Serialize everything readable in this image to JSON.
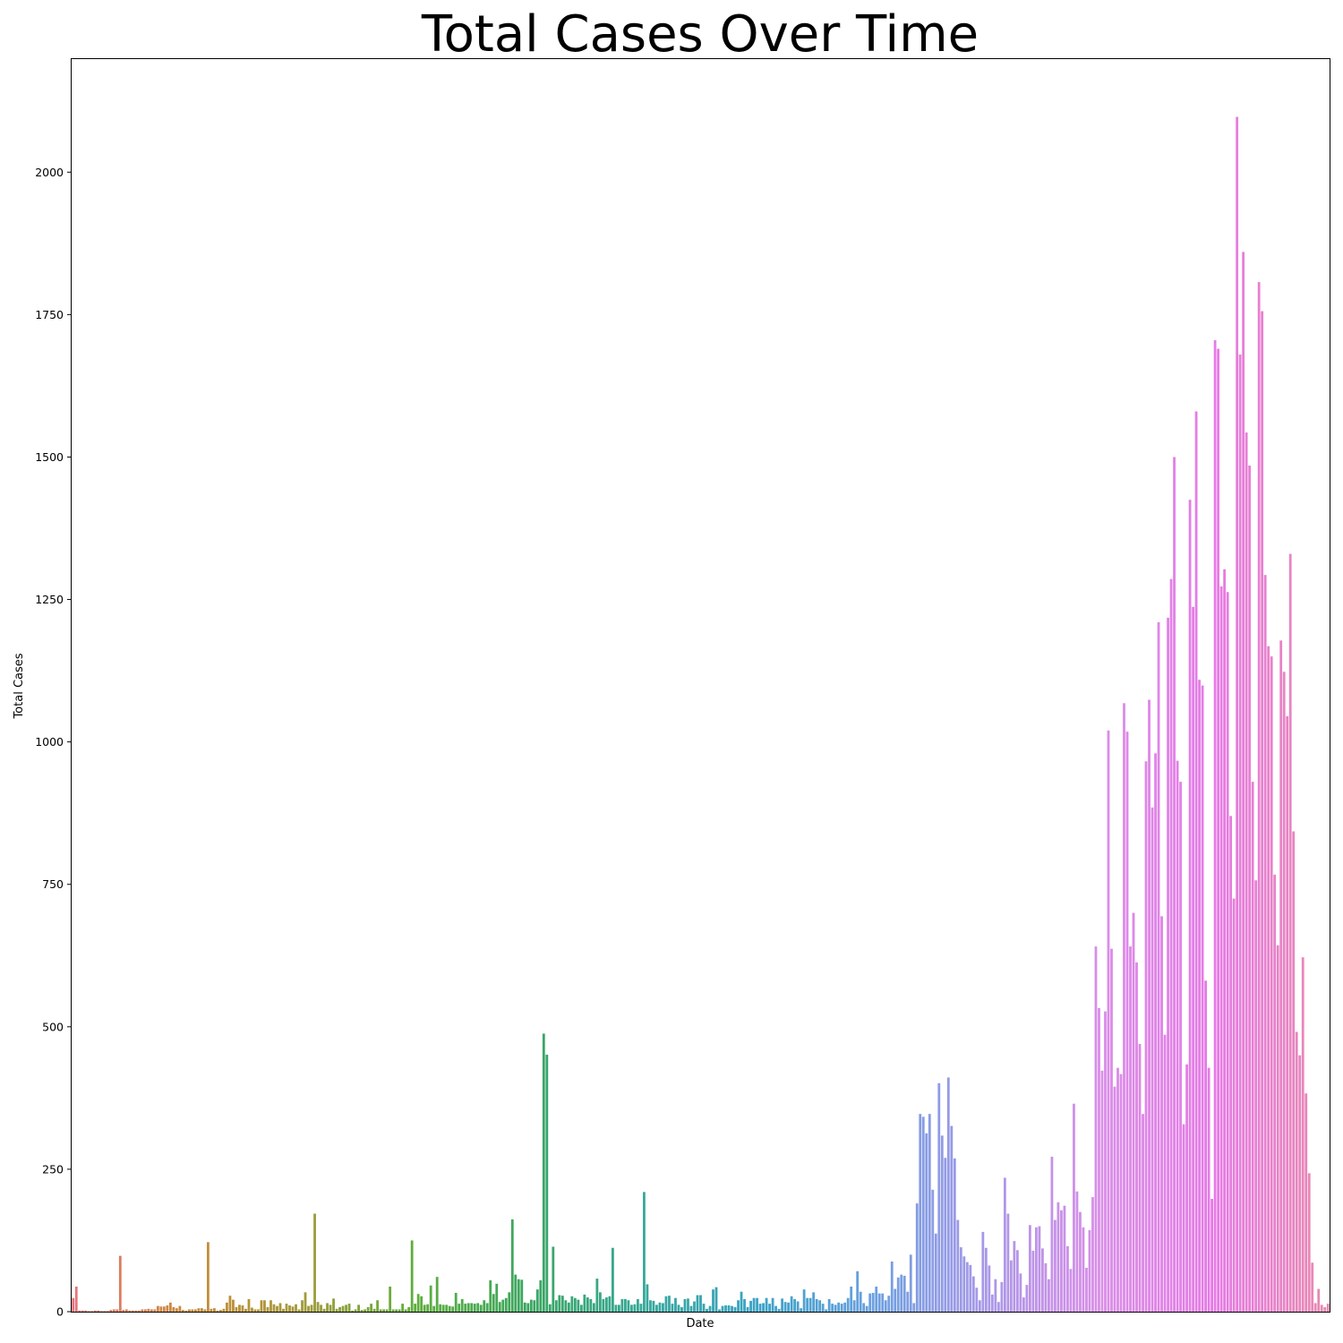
{
  "chart_data": {
    "type": "bar",
    "title": "Total Cases Over Time",
    "xlabel": "Date",
    "ylabel": "Total Cases",
    "ylim": [
      0,
      2200
    ],
    "yticks": [
      0,
      250,
      500,
      750,
      1000,
      1250,
      1500,
      1750,
      2000
    ],
    "xtick_labels_visible": false,
    "grid": false,
    "legend": "none",
    "color_gradient": [
      "#e8747c",
      "#c98a3a",
      "#a39a3a",
      "#5fae3c",
      "#3aa660",
      "#36a89a",
      "#3aa3c6",
      "#6aa0e0",
      "#a998e8",
      "#d98ee8",
      "#e67ae6",
      "#e88ab0"
    ],
    "values": [
      24,
      44,
      2,
      2,
      2,
      1,
      1,
      2,
      2,
      1,
      1,
      1,
      3,
      4,
      4,
      98,
      3,
      4,
      2,
      2,
      2,
      2,
      4,
      4,
      5,
      4,
      4,
      10,
      9,
      9,
      11,
      16,
      8,
      6,
      10,
      3,
      2,
      4,
      4,
      4,
      6,
      6,
      4,
      122,
      5,
      6,
      2,
      3,
      5,
      16,
      28,
      21,
      8,
      12,
      11,
      5,
      22,
      7,
      4,
      4,
      20,
      20,
      8,
      20,
      13,
      10,
      15,
      5,
      14,
      11,
      9,
      13,
      4,
      20,
      34,
      10,
      12,
      172,
      17,
      12,
      5,
      15,
      12,
      23,
      5,
      8,
      10,
      12,
      14,
      2,
      4,
      12,
      3,
      4,
      8,
      14,
      5,
      20,
      4,
      4,
      4,
      44,
      4,
      4,
      4,
      14,
      4,
      8,
      125,
      14,
      31,
      27,
      12,
      13,
      46,
      10,
      61,
      13,
      12,
      12,
      10,
      9,
      33,
      14,
      22,
      14,
      15,
      15,
      14,
      15,
      12,
      20,
      15,
      55,
      31,
      49,
      17,
      21,
      24,
      34,
      162,
      65,
      57,
      56,
      16,
      15,
      21,
      20,
      39,
      55,
      488,
      451,
      13,
      114,
      20,
      29,
      28,
      20,
      16,
      27,
      24,
      21,
      12,
      30,
      25,
      22,
      15,
      58,
      34,
      22,
      25,
      27,
      112,
      12,
      12,
      22,
      22,
      20,
      12,
      13,
      22,
      14,
      210,
      48,
      20,
      19,
      12,
      16,
      15,
      27,
      28,
      14,
      24,
      12,
      8,
      22,
      23,
      10,
      18,
      29,
      29,
      14,
      5,
      10,
      39,
      43,
      4,
      10,
      11,
      11,
      10,
      8,
      20,
      35,
      22,
      8,
      19,
      24,
      24,
      14,
      15,
      24,
      14,
      24,
      10,
      5,
      23,
      17,
      16,
      27,
      22,
      18,
      6,
      39,
      24,
      24,
      34,
      22,
      20,
      14,
      4,
      22,
      14,
      12,
      16,
      14,
      16,
      24,
      44,
      20,
      71,
      35,
      15,
      10,
      32,
      33,
      44,
      32,
      32,
      20,
      28,
      88,
      40,
      60,
      65,
      63,
      35,
      100,
      15,
      190,
      347,
      342,
      313,
      347,
      214,
      137,
      401,
      309,
      270,
      411,
      326,
      269,
      161,
      113,
      97,
      87,
      82,
      62,
      42,
      20,
      140,
      112,
      81,
      30,
      57,
      17,
      52,
      235,
      172,
      90,
      124,
      108,
      67,
      25,
      47,
      152,
      107,
      148,
      150,
      111,
      85,
      57,
      272,
      161,
      192,
      178,
      186,
      115,
      75,
      365,
      211,
      175,
      148,
      77,
      143,
      201,
      641,
      533,
      423,
      527,
      1020,
      637,
      395,
      428,
      417,
      1068,
      1018,
      641,
      700,
      613,
      470,
      347,
      966,
      1074,
      885,
      980,
      1210,
      694,
      486,
      1218,
      1286,
      1500,
      967,
      930,
      329,
      434,
      1425,
      1237,
      1580,
      1109,
      1099,
      581,
      428,
      198,
      1705,
      1690,
      1273,
      1303,
      1263,
      870,
      725,
      2097,
      1680,
      1860,
      1543,
      1485,
      930,
      757,
      1807,
      1756,
      1293,
      1168,
      1150,
      767,
      643,
      1178,
      1123,
      1045,
      1330,
      843,
      491,
      450,
      622,
      383,
      243,
      86,
      15,
      40,
      12,
      8,
      14
    ]
  }
}
